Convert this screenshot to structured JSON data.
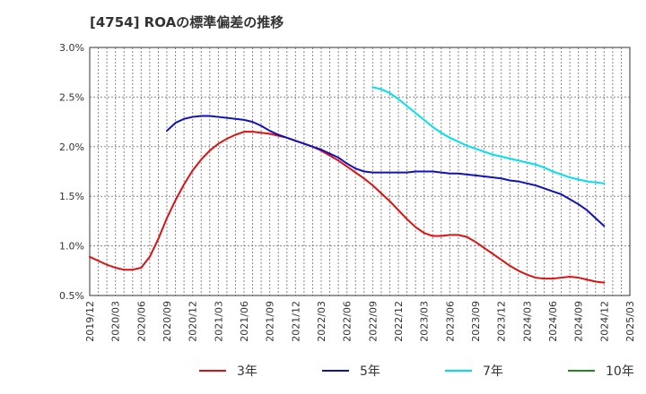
{
  "chart_data": {
    "type": "line",
    "title": "[4754]  ROAの標準偏差の推移",
    "xlabel": "",
    "ylabel": "",
    "x_ticks": [
      "2019/12",
      "2020/03",
      "2020/06",
      "2020/09",
      "2020/12",
      "2021/03",
      "2021/06",
      "2021/09",
      "2021/12",
      "2022/03",
      "2022/06",
      "2022/09",
      "2022/12",
      "2023/03",
      "2023/06",
      "2023/09",
      "2023/12",
      "2024/03",
      "2024/06",
      "2024/09",
      "2024/12",
      "2025/03"
    ],
    "y_ticks": [
      "0.5%",
      "1.0%",
      "1.5%",
      "2.0%",
      "2.5%",
      "3.0%"
    ],
    "ylim": [
      0.5,
      3.0
    ],
    "grid": true,
    "legend_position": "bottom",
    "x_start": "2019/12",
    "series": [
      {
        "name": "3年",
        "color": "#dd1111",
        "x": [
          "2019/12",
          "2020/01",
          "2020/02",
          "2020/03",
          "2020/04",
          "2020/05",
          "2020/06",
          "2020/07",
          "2020/08",
          "2020/09",
          "2020/10",
          "2020/11",
          "2020/12",
          "2021/01",
          "2021/02",
          "2021/03",
          "2021/04",
          "2021/05",
          "2021/06",
          "2021/07",
          "2021/08",
          "2021/09",
          "2021/10",
          "2021/11",
          "2021/12",
          "2022/01",
          "2022/02",
          "2022/03",
          "2022/04",
          "2022/05",
          "2022/06",
          "2022/07",
          "2022/08",
          "2022/09",
          "2022/10",
          "2022/11",
          "2022/12",
          "2023/01",
          "2023/02",
          "2023/03",
          "2023/04",
          "2023/05",
          "2023/06",
          "2023/07",
          "2023/08",
          "2023/09",
          "2023/10",
          "2023/11",
          "2023/12",
          "2024/01",
          "2024/02",
          "2024/03",
          "2024/04",
          "2024/05",
          "2024/06",
          "2024/07",
          "2024/08",
          "2024/09",
          "2024/10",
          "2024/11",
          "2024/12"
        ],
        "values": [
          0.89,
          0.85,
          0.81,
          0.78,
          0.76,
          0.76,
          0.78,
          0.89,
          1.07,
          1.28,
          1.46,
          1.62,
          1.76,
          1.87,
          1.96,
          2.03,
          2.08,
          2.12,
          2.15,
          2.15,
          2.14,
          2.13,
          2.11,
          2.09,
          2.06,
          2.03,
          2.0,
          1.96,
          1.91,
          1.86,
          1.8,
          1.74,
          1.68,
          1.61,
          1.53,
          1.45,
          1.36,
          1.27,
          1.19,
          1.13,
          1.1,
          1.1,
          1.11,
          1.11,
          1.09,
          1.04,
          0.98,
          0.92,
          0.86,
          0.8,
          0.75,
          0.71,
          0.68,
          0.67,
          0.67,
          0.68,
          0.69,
          0.68,
          0.66,
          0.64,
          0.63
        ]
      },
      {
        "name": "5年",
        "color": "#1111bb",
        "x": [
          "2020/09",
          "2020/10",
          "2020/11",
          "2020/12",
          "2021/01",
          "2021/02",
          "2021/03",
          "2021/04",
          "2021/05",
          "2021/06",
          "2021/07",
          "2021/08",
          "2021/09",
          "2021/10",
          "2021/11",
          "2021/12",
          "2022/01",
          "2022/02",
          "2022/03",
          "2022/04",
          "2022/05",
          "2022/06",
          "2022/07",
          "2022/08",
          "2022/09",
          "2022/10",
          "2022/11",
          "2022/12",
          "2023/01",
          "2023/02",
          "2023/03",
          "2023/04",
          "2023/05",
          "2023/06",
          "2023/07",
          "2023/08",
          "2023/09",
          "2023/10",
          "2023/11",
          "2023/12",
          "2024/01",
          "2024/02",
          "2024/03",
          "2024/04",
          "2024/05",
          "2024/06",
          "2024/07",
          "2024/08",
          "2024/09",
          "2024/10",
          "2024/11",
          "2024/12"
        ],
        "values": [
          2.16,
          2.24,
          2.28,
          2.3,
          2.31,
          2.31,
          2.3,
          2.29,
          2.28,
          2.27,
          2.25,
          2.21,
          2.16,
          2.12,
          2.09,
          2.06,
          2.03,
          2.0,
          1.97,
          1.93,
          1.89,
          1.83,
          1.78,
          1.75,
          1.74,
          1.74,
          1.74,
          1.74,
          1.74,
          1.75,
          1.75,
          1.75,
          1.74,
          1.73,
          1.73,
          1.72,
          1.71,
          1.7,
          1.69,
          1.68,
          1.66,
          1.65,
          1.63,
          1.61,
          1.58,
          1.55,
          1.52,
          1.47,
          1.42,
          1.36,
          1.28,
          1.2
        ]
      },
      {
        "name": "7年",
        "color": "#00e0ee",
        "x": [
          "2022/09",
          "2022/10",
          "2022/11",
          "2022/12",
          "2023/01",
          "2023/02",
          "2023/03",
          "2023/04",
          "2023/05",
          "2023/06",
          "2023/07",
          "2023/08",
          "2023/09",
          "2023/10",
          "2023/11",
          "2023/12",
          "2024/01",
          "2024/02",
          "2024/03",
          "2024/04",
          "2024/05",
          "2024/06",
          "2024/07",
          "2024/08",
          "2024/09",
          "2024/10",
          "2024/11",
          "2024/12"
        ],
        "values": [
          2.6,
          2.58,
          2.54,
          2.48,
          2.41,
          2.34,
          2.27,
          2.2,
          2.14,
          2.09,
          2.05,
          2.01,
          1.98,
          1.95,
          1.92,
          1.9,
          1.88,
          1.86,
          1.84,
          1.82,
          1.79,
          1.75,
          1.72,
          1.69,
          1.67,
          1.65,
          1.64,
          1.63
        ]
      },
      {
        "name": "10年",
        "color": "#228822",
        "x": [],
        "values": []
      }
    ]
  }
}
